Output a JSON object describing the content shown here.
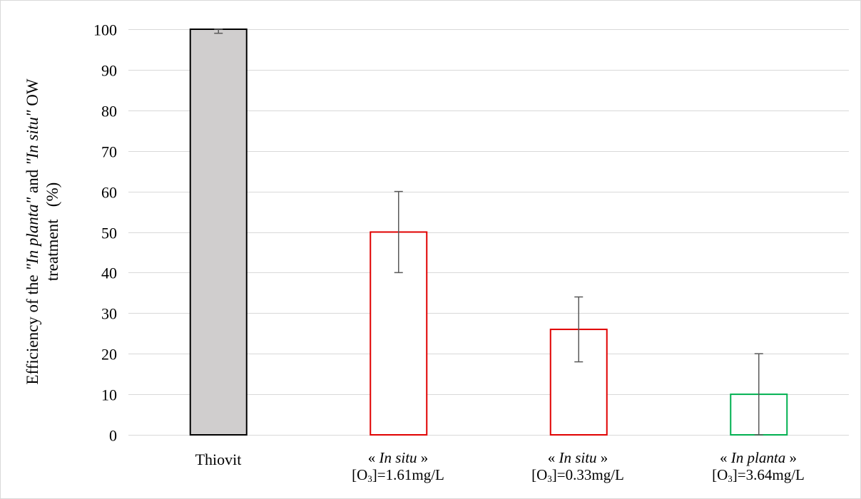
{
  "chart_data": {
    "type": "bar",
    "ylim": [
      0,
      100
    ],
    "yticks": [
      "0",
      "10",
      "20",
      "30",
      "40",
      "50",
      "60",
      "70",
      "80",
      "90",
      "100"
    ],
    "ylabel": {
      "prefix": "Efficiency of the ",
      "in_planta": "\"In planta\"",
      "and": " and ",
      "in_situ": "\"In situ\"",
      "suffix": " OW",
      "line2": "treatment   (%)"
    },
    "grid": "horizontal",
    "categories": [
      {
        "name": "Thiovit",
        "label_line1_pre": "",
        "label_line1_italic": "",
        "label_line1_post": "",
        "label_line2_pre": "",
        "label_line2_sub": "",
        "label_line2_post": ""
      },
      {
        "name": "« In situ » [O3]=1.61mg/L",
        "label_line1_pre": "« ",
        "label_line1_italic": "In situ",
        "label_line1_post": " »",
        "label_line2_pre": "[O",
        "label_line2_sub": "3",
        "label_line2_post": "]=1.61mg/L"
      },
      {
        "name": "« In situ » [O3]=0.33mg/L",
        "label_line1_pre": "« ",
        "label_line1_italic": "In situ",
        "label_line1_post": " »",
        "label_line2_pre": "[O",
        "label_line2_sub": "3",
        "label_line2_post": "]=0.33mg/L"
      },
      {
        "name": "« In planta » [O3]=3.64mg/L",
        "label_line1_pre": "« ",
        "label_line1_italic": "In planta",
        "label_line1_post": " »",
        "label_line2_pre": "[O",
        "label_line2_sub": "3",
        "label_line2_post": "]=3.64mg/L"
      }
    ],
    "values": [
      100,
      50,
      26,
      10
    ],
    "error_low": [
      1,
      10,
      8,
      10
    ],
    "error_high": [
      0,
      10,
      8,
      10
    ],
    "bar_fill": [
      "#d0cece",
      "#ffffff",
      "#ffffff",
      "#ffffff"
    ],
    "bar_stroke": [
      "#000000",
      "#e00000",
      "#e00000",
      "#00b050"
    ],
    "error_color": "#595959",
    "grid_color": "#d9d9d9"
  }
}
